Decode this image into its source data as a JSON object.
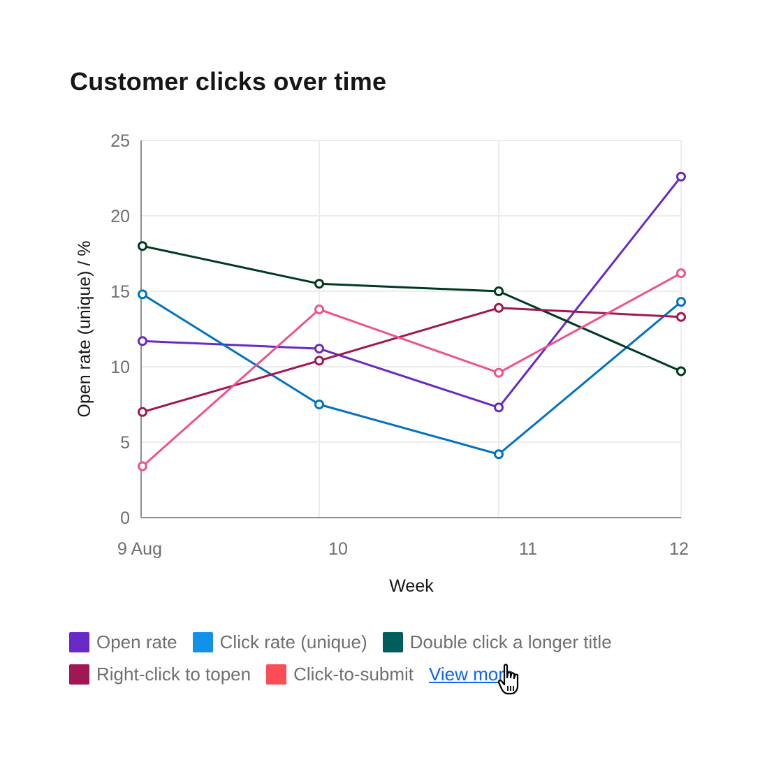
{
  "header": {
    "title": "Customer clicks over time"
  },
  "chart_data": {
    "type": "line",
    "title": "Customer clicks over time",
    "xlabel": "Week",
    "ylabel": "Open rate (unique) / %",
    "categories": [
      "9 Aug",
      "10",
      "11",
      "12"
    ],
    "ylim": [
      0,
      25
    ],
    "yticks": [
      0,
      5,
      10,
      15,
      20,
      25
    ],
    "grid": true,
    "legend_position": "bottom",
    "series": [
      {
        "name": "Open rate",
        "color": "#6929c4",
        "values": [
          11.7,
          11.2,
          7.3,
          22.6
        ]
      },
      {
        "name": "Click rate (unique)",
        "color": "#0072c3",
        "values": [
          14.8,
          7.5,
          4.2,
          14.3
        ]
      },
      {
        "name": "Double click a longer title",
        "color": "#003a1f",
        "values": [
          18.0,
          15.5,
          15.0,
          9.7
        ]
      },
      {
        "name": "Right-click to topen",
        "color": "#9f1853",
        "values": [
          7.0,
          10.4,
          13.9,
          13.3
        ]
      },
      {
        "name": "Click-to-submit",
        "color": "#ee538b",
        "values": [
          3.4,
          13.8,
          9.6,
          16.2
        ]
      }
    ]
  },
  "legend": {
    "items": [
      {
        "label": "Open rate",
        "swatch": "#6929c4"
      },
      {
        "label": "Click rate (unique)",
        "swatch": "#1192e8"
      },
      {
        "label": "Double click a longer title",
        "swatch": "#005d5d"
      },
      {
        "label": "Right-click to topen",
        "swatch": "#9f1853"
      },
      {
        "label": "Click-to-submit",
        "swatch": "#fa4d56"
      }
    ],
    "view_more": "View more"
  },
  "cursor": {
    "icon": "hand-pointer-icon"
  }
}
